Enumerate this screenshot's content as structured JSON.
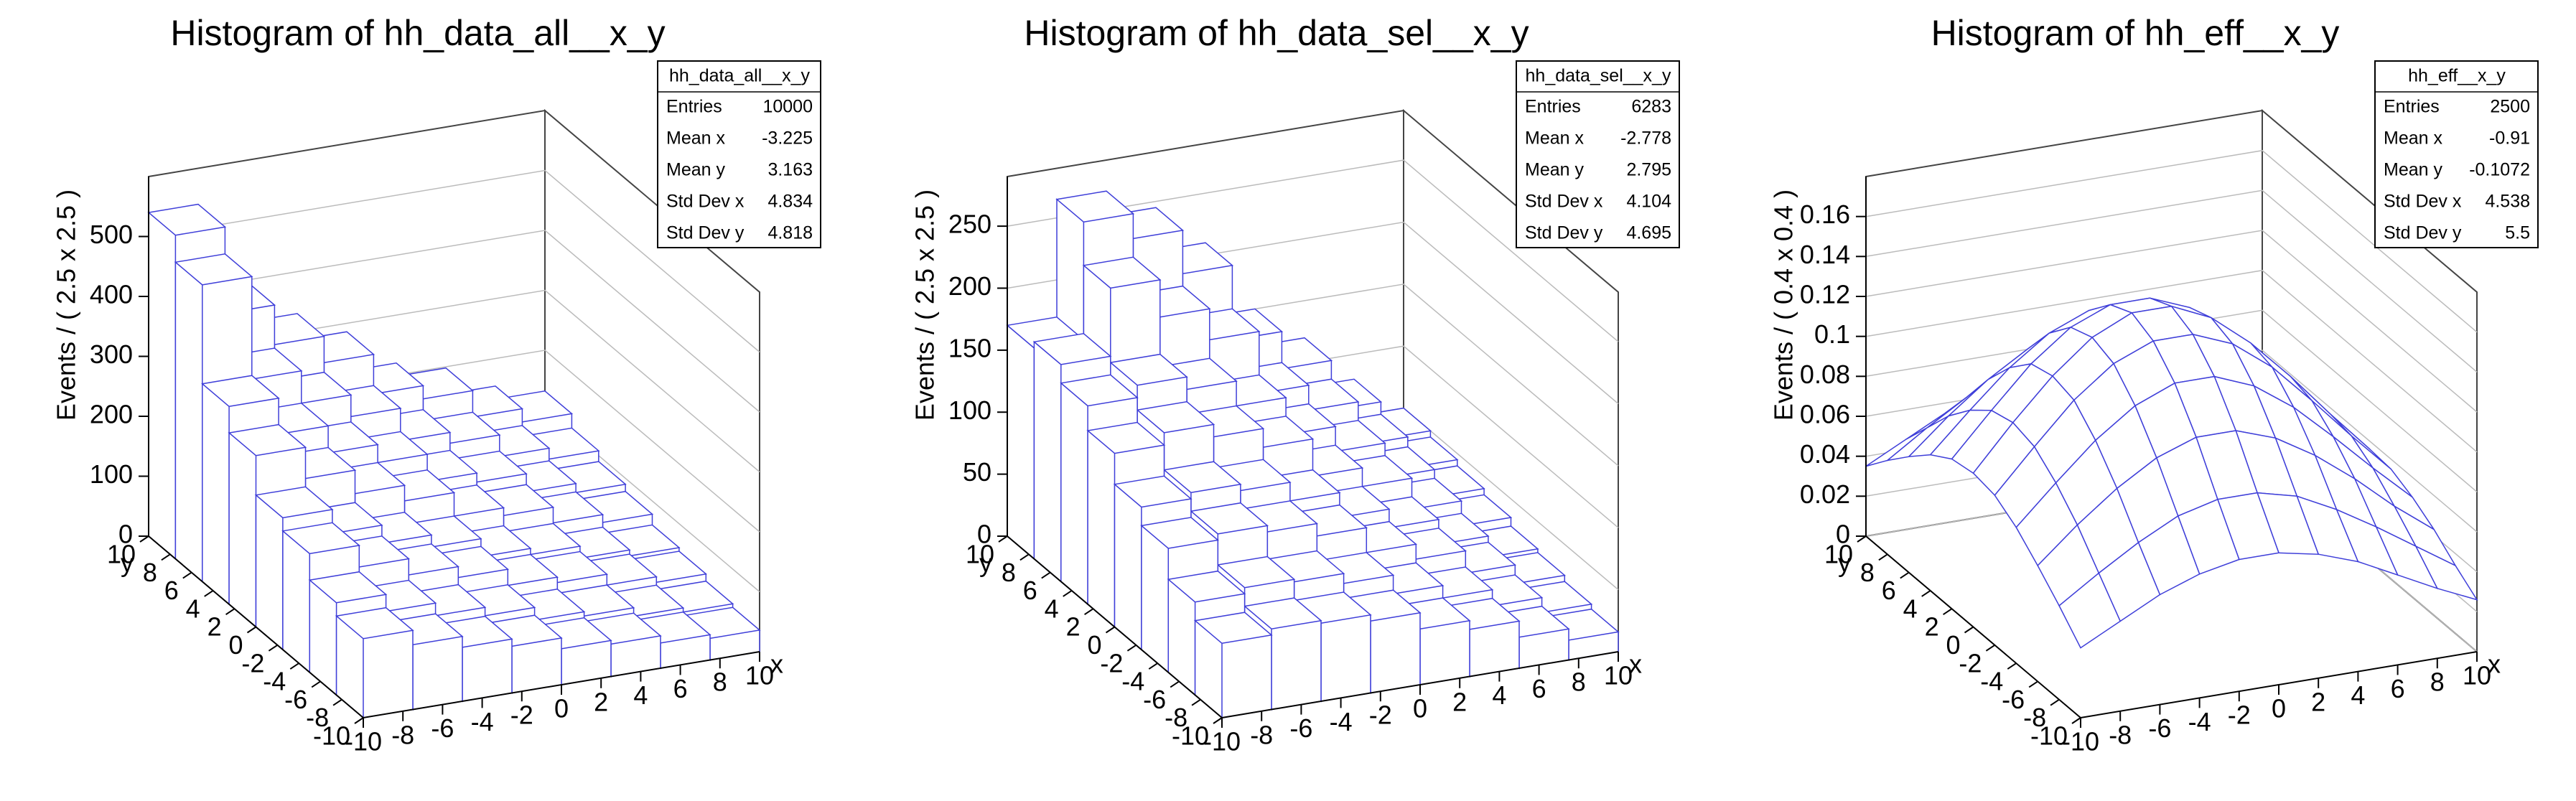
{
  "chart_data": [
    {
      "type": "lego",
      "title": "Histogram of hh_data_all__x_y",
      "color": "#3f3fd9",
      "xlabel": "x",
      "ylabel": "y",
      "zlabel": "Events / ( 2.5 x 2.5 )",
      "xlim": [
        -10,
        10
      ],
      "ylim": [
        -10,
        10
      ],
      "zlim": [
        0,
        600
      ],
      "xticks": [
        -10,
        -8,
        -6,
        -4,
        -2,
        0,
        2,
        4,
        6,
        8,
        10
      ],
      "yticks": [
        -10,
        -8,
        -6,
        -4,
        -2,
        0,
        2,
        4,
        6,
        8,
        10
      ],
      "zticks": [
        0,
        100,
        200,
        300,
        400,
        500
      ],
      "xbins": [
        -10,
        -7.5,
        -5,
        -2.5,
        0,
        2.5,
        5,
        7.5,
        10
      ],
      "ybins": [
        -10,
        -7.5,
        -5,
        -2.5,
        0,
        2.5,
        5,
        7.5,
        10
      ],
      "values": [
        [
          132,
          108,
          90,
          78,
          60,
          54,
          42,
          36
        ],
        [
          154,
          126,
          105,
          91,
          70,
          63,
          49,
          42
        ],
        [
          198,
          162,
          135,
          117,
          90,
          81,
          63,
          54
        ],
        [
          220,
          180,
          150,
          130,
          100,
          90,
          70,
          60
        ],
        [
          286,
          234,
          195,
          169,
          130,
          117,
          91,
          78
        ],
        [
          330,
          270,
          225,
          195,
          150,
          135,
          105,
          90
        ],
        [
          495,
          324,
          270,
          234,
          180,
          162,
          126,
          108
        ],
        [
          540,
          396,
          330,
          286,
          220,
          198,
          154,
          132
        ]
      ],
      "stats": {
        "title": "hh_data_all__x_y",
        "rows": [
          {
            "label": "Entries",
            "value": 10000
          },
          {
            "label": "Mean x",
            "value": -3.225
          },
          {
            "label": "Mean y",
            "value": 3.163
          },
          {
            "label": "Std Dev x",
            "value": 4.834
          },
          {
            "label": "Std Dev y",
            "value": 4.818
          }
        ]
      }
    },
    {
      "type": "lego",
      "title": "Histogram of hh_data_sel__x_y",
      "color": "#3f3fd9",
      "xlabel": "x",
      "ylabel": "y",
      "zlabel": "Events / ( 2.5 x 2.5 )",
      "xlim": [
        -10,
        10
      ],
      "ylim": [
        -10,
        10
      ],
      "zlim": [
        0,
        290
      ],
      "xticks": [
        -10,
        -8,
        -6,
        -4,
        -2,
        0,
        2,
        4,
        6,
        8,
        10
      ],
      "yticks": [
        -10,
        -8,
        -6,
        -4,
        -2,
        0,
        2,
        4,
        6,
        8,
        10
      ],
      "zticks": [
        0,
        50,
        100,
        150,
        200,
        250
      ],
      "xbins": [
        -10,
        -7.5,
        -5,
        -2.5,
        0,
        2.5,
        5,
        7.5,
        10
      ],
      "ybins": [
        -10,
        -7.5,
        -5,
        -2.5,
        0,
        2.5,
        5,
        7.5,
        10
      ],
      "values": [
        [
          60,
          65,
          63,
          58,
          45,
          38,
          25,
          16
        ],
        [
          75,
          80,
          78,
          70,
          55,
          45,
          32,
          20
        ],
        [
          100,
          105,
          100,
          90,
          70,
          58,
          40,
          25
        ],
        [
          115,
          120,
          115,
          100,
          80,
          65,
          45,
          28
        ],
        [
          140,
          150,
          140,
          125,
          95,
          80,
          55,
          35
        ],
        [
          160,
          170,
          160,
          140,
          110,
          90,
          62,
          40
        ],
        [
          175,
          230,
          200,
          175,
          125,
          105,
          70,
          45
        ],
        [
          170,
          265,
          245,
          210,
          150,
          120,
          80,
          50
        ]
      ],
      "stats": {
        "title": "hh_data_sel__x_y",
        "rows": [
          {
            "label": "Entries",
            "value": 6283
          },
          {
            "label": "Mean x",
            "value": -2.778
          },
          {
            "label": "Mean y",
            "value": 2.795
          },
          {
            "label": "Std Dev x",
            "value": 4.104
          },
          {
            "label": "Std Dev y",
            "value": 4.695
          }
        ]
      }
    },
    {
      "type": "surface",
      "title": "Histogram of hh_eff__x_y",
      "color": "#3f3fd9",
      "xlabel": "x",
      "ylabel": "y",
      "zlabel": "Events / ( 0.4 x 0.4 )",
      "xlim": [
        -10,
        10
      ],
      "ylim": [
        -10,
        10
      ],
      "zlim": [
        0,
        0.18
      ],
      "xticks": [
        -10,
        -8,
        -6,
        -4,
        -2,
        0,
        2,
        4,
        6,
        8,
        10
      ],
      "yticks": [
        -10,
        -8,
        -6,
        -4,
        -2,
        0,
        2,
        4,
        6,
        8,
        10
      ],
      "zticks": [
        0,
        0.02,
        0.04,
        0.06,
        0.08,
        0.1,
        0.12,
        0.14,
        0.16
      ],
      "x": [
        -10,
        -8,
        -6,
        -4,
        -2,
        0,
        2,
        4,
        6,
        8,
        10
      ],
      "y": [
        -10,
        -8,
        -6,
        -4,
        -2,
        0,
        2,
        4,
        6,
        8,
        10
      ],
      "values": [
        [
          0.035,
          0.045,
          0.055,
          0.062,
          0.066,
          0.066,
          0.062,
          0.055,
          0.045,
          0.035,
          0.026
        ],
        [
          0.047,
          0.06,
          0.072,
          0.082,
          0.087,
          0.087,
          0.082,
          0.072,
          0.06,
          0.047,
          0.034
        ],
        [
          0.058,
          0.075,
          0.09,
          0.102,
          0.109,
          0.109,
          0.102,
          0.09,
          0.075,
          0.058,
          0.043
        ],
        [
          0.068,
          0.087,
          0.105,
          0.119,
          0.127,
          0.127,
          0.119,
          0.105,
          0.087,
          0.068,
          0.05
        ],
        [
          0.075,
          0.096,
          0.116,
          0.131,
          0.139,
          0.139,
          0.131,
          0.116,
          0.096,
          0.075,
          0.055
        ],
        [
          0.077,
          0.099,
          0.119,
          0.135,
          0.144,
          0.144,
          0.135,
          0.119,
          0.099,
          0.077,
          0.056
        ],
        [
          0.075,
          0.096,
          0.116,
          0.131,
          0.139,
          0.139,
          0.131,
          0.116,
          0.096,
          0.075,
          0.055
        ],
        [
          0.068,
          0.087,
          0.105,
          0.119,
          0.127,
          0.127,
          0.119,
          0.105,
          0.087,
          0.068,
          0.05
        ],
        [
          0.058,
          0.075,
          0.09,
          0.102,
          0.109,
          0.109,
          0.102,
          0.09,
          0.075,
          0.058,
          0.043
        ],
        [
          0.047,
          0.06,
          0.072,
          0.082,
          0.087,
          0.087,
          0.082,
          0.072,
          0.06,
          0.047,
          0.034
        ],
        [
          0.035,
          0.045,
          0.055,
          0.062,
          0.066,
          0.066,
          0.062,
          0.055,
          0.045,
          0.035,
          0.026
        ]
      ],
      "stats": {
        "title": "hh_eff__x_y",
        "rows": [
          {
            "label": "Entries",
            "value": 2500
          },
          {
            "label": "Mean x",
            "value": -0.91
          },
          {
            "label": "Mean y",
            "value": -0.1072
          },
          {
            "label": "Std Dev x",
            "value": 4.538
          },
          {
            "label": "Std Dev y",
            "value": 5.5
          }
        ]
      }
    }
  ]
}
